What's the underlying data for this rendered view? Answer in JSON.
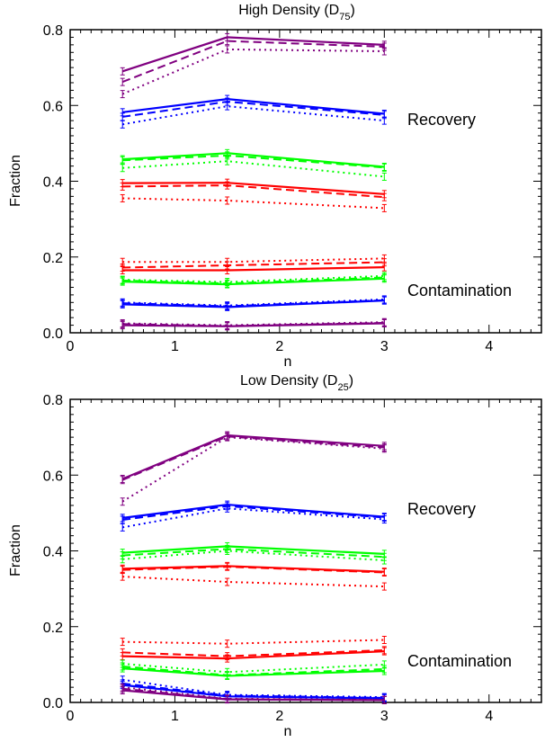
{
  "chart_data": [
    {
      "type": "line",
      "title": "High Density (D",
      "title_sub": "75",
      "title_close": ")",
      "xlabel": "n",
      "ylabel": "Fraction",
      "xlim": [
        0,
        4.5
      ],
      "ylim": [
        0,
        0.8
      ],
      "xticks": [
        "0",
        "1",
        "2",
        "3",
        "4"
      ],
      "yticks": [
        "0.0",
        "0.2",
        "0.4",
        "0.6",
        "0.8"
      ],
      "annotations": [
        "Recovery",
        "Contamination"
      ],
      "x": [
        0.5,
        1.5,
        3
      ],
      "series": [
        {
          "color": "#800080",
          "style": "solid",
          "values": [
            0.69,
            0.78,
            0.76
          ]
        },
        {
          "color": "#800080",
          "style": "dashed",
          "values": [
            0.662,
            0.77,
            0.755
          ]
        },
        {
          "color": "#800080",
          "style": "dotted",
          "values": [
            0.63,
            0.748,
            0.743
          ]
        },
        {
          "color": "#0000ff",
          "style": "solid",
          "values": [
            0.582,
            0.617,
            0.578
          ]
        },
        {
          "color": "#0000ff",
          "style": "dashed",
          "values": [
            0.57,
            0.61,
            0.575
          ]
        },
        {
          "color": "#0000ff",
          "style": "dotted",
          "values": [
            0.55,
            0.598,
            0.56
          ]
        },
        {
          "color": "#00ff00",
          "style": "solid",
          "values": [
            0.458,
            0.474,
            0.438
          ]
        },
        {
          "color": "#00ff00",
          "style": "dashed",
          "values": [
            0.455,
            0.468,
            0.436
          ]
        },
        {
          "color": "#00ff00",
          "style": "dotted",
          "values": [
            0.435,
            0.453,
            0.412
          ]
        },
        {
          "color": "#ff0000",
          "style": "solid",
          "values": [
            0.395,
            0.396,
            0.366
          ]
        },
        {
          "color": "#ff0000",
          "style": "dashed",
          "values": [
            0.386,
            0.389,
            0.358
          ]
        },
        {
          "color": "#ff0000",
          "style": "dotted",
          "values": [
            0.355,
            0.349,
            0.329
          ]
        },
        {
          "color": "#ff0000",
          "style": "dotted",
          "values": [
            0.187,
            0.187,
            0.196
          ]
        },
        {
          "color": "#ff0000",
          "style": "dashed",
          "values": [
            0.172,
            0.178,
            0.186
          ]
        },
        {
          "color": "#ff0000",
          "style": "solid",
          "values": [
            0.165,
            0.165,
            0.173
          ]
        },
        {
          "color": "#00ff00",
          "style": "dotted",
          "values": [
            0.14,
            0.134,
            0.15
          ]
        },
        {
          "color": "#00ff00",
          "style": "dashed",
          "values": [
            0.138,
            0.13,
            0.146
          ]
        },
        {
          "color": "#00ff00",
          "style": "solid",
          "values": [
            0.135,
            0.128,
            0.143
          ]
        },
        {
          "color": "#0000ff",
          "style": "dotted",
          "values": [
            0.08,
            0.072,
            0.088
          ]
        },
        {
          "color": "#0000ff",
          "style": "dashed",
          "values": [
            0.078,
            0.07,
            0.086
          ]
        },
        {
          "color": "#0000ff",
          "style": "solid",
          "values": [
            0.075,
            0.068,
            0.085
          ]
        },
        {
          "color": "#800080",
          "style": "dotted",
          "values": [
            0.025,
            0.02,
            0.028
          ]
        },
        {
          "color": "#800080",
          "style": "dashed",
          "values": [
            0.023,
            0.018,
            0.026
          ]
        },
        {
          "color": "#800080",
          "style": "solid",
          "values": [
            0.02,
            0.017,
            0.025
          ]
        }
      ]
    },
    {
      "type": "line",
      "title": "Low Density (D",
      "title_sub": "25",
      "title_close": ")",
      "xlabel": "n",
      "ylabel": "Fraction",
      "xlim": [
        0,
        4.5
      ],
      "ylim": [
        0,
        0.8
      ],
      "xticks": [
        "0",
        "1",
        "2",
        "3",
        "4"
      ],
      "yticks": [
        "0.0",
        "0.2",
        "0.4",
        "0.6",
        "0.8"
      ],
      "annotations": [
        "Recovery",
        "Contamination"
      ],
      "x": [
        0.5,
        1.5,
        3
      ],
      "series": [
        {
          "color": "#800080",
          "style": "solid",
          "values": [
            0.59,
            0.705,
            0.677
          ]
        },
        {
          "color": "#800080",
          "style": "dashed",
          "values": [
            0.587,
            0.702,
            0.673
          ]
        },
        {
          "color": "#800080",
          "style": "dotted",
          "values": [
            0.53,
            0.7,
            0.67
          ]
        },
        {
          "color": "#0000ff",
          "style": "solid",
          "values": [
            0.487,
            0.522,
            0.49
          ]
        },
        {
          "color": "#0000ff",
          "style": "dashed",
          "values": [
            0.482,
            0.518,
            0.488
          ]
        },
        {
          "color": "#0000ff",
          "style": "dotted",
          "values": [
            0.462,
            0.512,
            0.483
          ]
        },
        {
          "color": "#00ff00",
          "style": "solid",
          "values": [
            0.395,
            0.412,
            0.392
          ]
        },
        {
          "color": "#00ff00",
          "style": "dashed",
          "values": [
            0.388,
            0.405,
            0.384
          ]
        },
        {
          "color": "#00ff00",
          "style": "dotted",
          "values": [
            0.378,
            0.4,
            0.375
          ]
        },
        {
          "color": "#ff0000",
          "style": "solid",
          "values": [
            0.353,
            0.36,
            0.345
          ]
        },
        {
          "color": "#ff0000",
          "style": "dashed",
          "values": [
            0.35,
            0.358,
            0.343
          ]
        },
        {
          "color": "#ff0000",
          "style": "dotted",
          "values": [
            0.332,
            0.318,
            0.306
          ]
        },
        {
          "color": "#ff0000",
          "style": "dotted",
          "values": [
            0.16,
            0.155,
            0.165
          ]
        },
        {
          "color": "#ff0000",
          "style": "dashed",
          "values": [
            0.132,
            0.122,
            0.138
          ]
        },
        {
          "color": "#ff0000",
          "style": "solid",
          "values": [
            0.122,
            0.116,
            0.135
          ]
        },
        {
          "color": "#00ff00",
          "style": "dotted",
          "values": [
            0.102,
            0.08,
            0.1
          ]
        },
        {
          "color": "#00ff00",
          "style": "dashed",
          "values": [
            0.095,
            0.072,
            0.088
          ]
        },
        {
          "color": "#00ff00",
          "style": "solid",
          "values": [
            0.09,
            0.07,
            0.083
          ]
        },
        {
          "color": "#0000ff",
          "style": "dotted",
          "values": [
            0.06,
            0.02,
            0.014
          ]
        },
        {
          "color": "#0000ff",
          "style": "dashed",
          "values": [
            0.05,
            0.018,
            0.012
          ]
        },
        {
          "color": "#0000ff",
          "style": "solid",
          "values": [
            0.046,
            0.016,
            0.011
          ]
        },
        {
          "color": "#800080",
          "style": "dotted",
          "values": [
            0.04,
            0.01,
            0.007
          ]
        },
        {
          "color": "#800080",
          "style": "dashed",
          "values": [
            0.036,
            0.009,
            0.006
          ]
        },
        {
          "color": "#800080",
          "style": "solid",
          "values": [
            0.032,
            0.008,
            0.006
          ]
        }
      ]
    }
  ]
}
